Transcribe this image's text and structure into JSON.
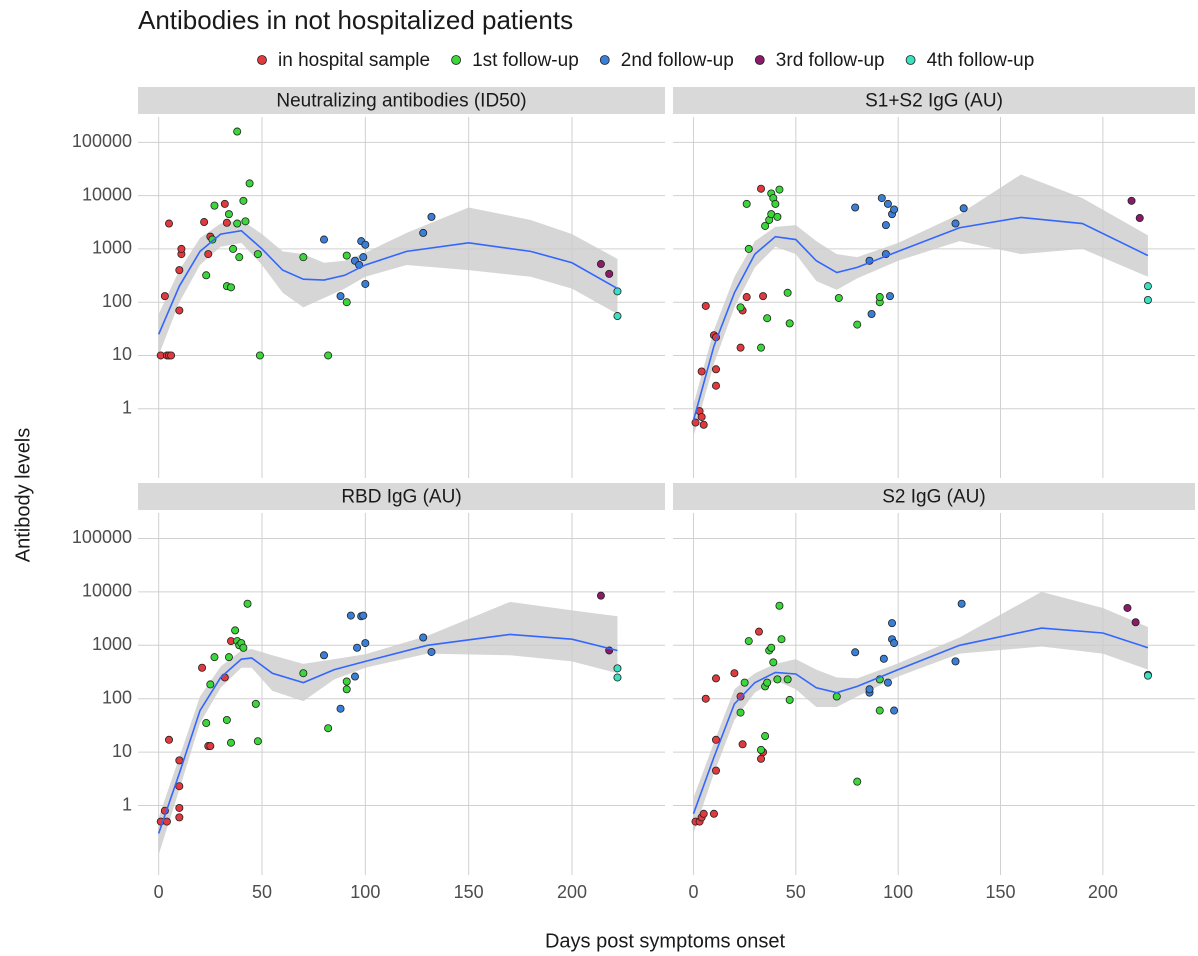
{
  "title": "Antibodies in not hospitalized patients",
  "xlabel": "Days post symptoms onset",
  "ylabel": "Antibody levels",
  "chart_data": [
    {
      "type": "scatter",
      "title": "Neutralizing antibodies (ID50)",
      "xlim": [
        -10,
        245
      ],
      "ylim": [
        0.05,
        300000
      ],
      "xticks": [
        0,
        50,
        100,
        150,
        200
      ],
      "yticks": [
        1,
        10,
        100,
        1000,
        10000,
        100000
      ],
      "log_y": true,
      "grid": true,
      "series": [
        {
          "name": "in hospital sample",
          "color": "#e03a3e",
          "x": [
            1,
            4,
            5,
            6,
            3,
            5,
            10,
            10,
            11,
            11,
            22,
            24,
            25,
            32,
            33
          ],
          "values": [
            10,
            10,
            10,
            10,
            130,
            3000,
            70,
            400,
            800,
            1000,
            3200,
            800,
            1700,
            7000,
            3100
          ]
        },
        {
          "name": "1st follow-up",
          "color": "#3ad63a",
          "x": [
            23,
            27,
            26,
            34,
            33,
            35,
            36,
            38,
            38,
            39,
            41,
            42,
            44,
            48,
            49,
            70,
            82,
            91,
            91
          ],
          "values": [
            320,
            6500,
            1500,
            4500,
            200,
            190,
            1000,
            160000,
            3000,
            700,
            8000,
            3300,
            17000,
            800,
            10,
            700,
            10,
            750,
            100
          ]
        },
        {
          "name": "2nd follow-up",
          "color": "#3a7fd6",
          "x": [
            80,
            88,
            95,
            97,
            98,
            99,
            100,
            100,
            128,
            132
          ],
          "values": [
            1500,
            130,
            600,
            500,
            1400,
            700,
            1200,
            220,
            2000,
            4000
          ]
        },
        {
          "name": "3rd follow-up",
          "color": "#8b1a6b",
          "x": [
            214,
            218
          ],
          "values": [
            520,
            340
          ]
        },
        {
          "name": "4th follow-up",
          "color": "#3ae0c0",
          "x": [
            222,
            222
          ],
          "values": [
            160,
            55
          ]
        }
      ],
      "fit": {
        "color": "#3366ff",
        "band_color": "#cccccc",
        "x": [
          0,
          10,
          20,
          30,
          40,
          50,
          60,
          70,
          80,
          90,
          100,
          120,
          150,
          180,
          200,
          222
        ],
        "values": [
          25,
          200,
          900,
          1900,
          2200,
          1000,
          400,
          270,
          260,
          320,
          500,
          900,
          1300,
          900,
          550,
          180
        ],
        "lower": [
          10,
          100,
          500,
          1100,
          1300,
          500,
          150,
          80,
          120,
          180,
          300,
          500,
          400,
          300,
          180,
          60
        ],
        "upper": [
          60,
          400,
          1600,
          3000,
          3500,
          1900,
          900,
          800,
          550,
          600,
          850,
          2000,
          6000,
          3500,
          1900,
          650
        ]
      }
    },
    {
      "type": "scatter",
      "title": "S1+S2 IgG (AU)",
      "xlim": [
        -10,
        245
      ],
      "ylim": [
        0.05,
        300000
      ],
      "xticks": [
        0,
        50,
        100,
        150,
        200
      ],
      "yticks": [
        1,
        10,
        100,
        1000,
        10000,
        100000
      ],
      "log_y": true,
      "grid": true,
      "series": [
        {
          "name": "in hospital sample",
          "color": "#e03a3e",
          "x": [
            1,
            3,
            4,
            5,
            4,
            6,
            10,
            11,
            11,
            11,
            23,
            24,
            26,
            33,
            34
          ],
          "values": [
            0.55,
            0.9,
            0.7,
            0.5,
            5,
            85,
            24,
            22,
            5.5,
            2.7,
            14,
            70,
            125,
            13500,
            130
          ]
        },
        {
          "name": "1st follow-up",
          "color": "#3ad63a",
          "x": [
            23,
            26,
            27,
            33,
            35,
            36,
            37,
            38,
            38,
            39,
            40,
            41,
            42,
            46,
            47,
            71,
            80,
            91,
            91
          ],
          "values": [
            80,
            7000,
            1000,
            14,
            2700,
            50,
            3500,
            4500,
            11000,
            9000,
            7000,
            4000,
            13000,
            150,
            40,
            120,
            38,
            100,
            125
          ]
        },
        {
          "name": "2nd follow-up",
          "color": "#3a7fd6",
          "x": [
            79,
            86,
            87,
            92,
            94,
            94,
            95,
            96,
            97,
            98,
            128,
            132
          ],
          "values": [
            6000,
            600,
            60,
            9000,
            2800,
            800,
            7000,
            130,
            4500,
            5500,
            3000,
            5800
          ]
        },
        {
          "name": "3rd follow-up",
          "color": "#8b1a6b",
          "x": [
            214,
            218
          ],
          "values": [
            8000,
            3800
          ]
        },
        {
          "name": "4th follow-up",
          "color": "#3ae0c0",
          "x": [
            222,
            222
          ],
          "values": [
            200,
            110
          ]
        }
      ],
      "fit": {
        "color": "#3366ff",
        "band_color": "#cccccc",
        "x": [
          0,
          10,
          20,
          30,
          40,
          50,
          60,
          70,
          80,
          100,
          130,
          160,
          190,
          222
        ],
        "values": [
          0.6,
          15,
          150,
          800,
          1700,
          1500,
          600,
          360,
          450,
          900,
          2500,
          3900,
          3000,
          750
        ],
        "lower": [
          0.3,
          7,
          80,
          450,
          1100,
          800,
          250,
          170,
          280,
          600,
          1400,
          800,
          1000,
          300
        ],
        "upper": [
          1.2,
          30,
          300,
          1400,
          2600,
          2800,
          1400,
          800,
          700,
          1300,
          4500,
          25000,
          9000,
          1800
        ]
      }
    },
    {
      "type": "scatter",
      "title": "RBD IgG (AU)",
      "xlim": [
        -10,
        245
      ],
      "ylim": [
        0.05,
        300000
      ],
      "xticks": [
        0,
        50,
        100,
        150,
        200
      ],
      "yticks": [
        1,
        10,
        100,
        1000,
        10000,
        100000
      ],
      "log_y": true,
      "grid": true,
      "series": [
        {
          "name": "in hospital sample",
          "color": "#e03a3e",
          "x": [
            1,
            3,
            4,
            5,
            10,
            10,
            10,
            10,
            21,
            24,
            25,
            32,
            35
          ],
          "values": [
            0.5,
            0.8,
            0.5,
            17,
            7,
            2.3,
            0.9,
            0.6,
            380,
            13,
            13,
            250,
            1200
          ]
        },
        {
          "name": "1st follow-up",
          "color": "#3ad63a",
          "x": [
            23,
            25,
            27,
            33,
            34,
            35,
            37,
            38,
            39,
            40,
            41,
            43,
            47,
            48,
            70,
            82,
            91,
            91
          ],
          "values": [
            35,
            185,
            600,
            40,
            600,
            15,
            1900,
            1200,
            1000,
            1100,
            900,
            6000,
            80,
            16,
            300,
            28,
            210,
            150
          ]
        },
        {
          "name": "2nd follow-up",
          "color": "#3a7fd6",
          "x": [
            80,
            88,
            93,
            95,
            96,
            98,
            99,
            100,
            128,
            132
          ],
          "values": [
            650,
            65,
            3600,
            260,
            900,
            3500,
            3600,
            1100,
            1400,
            750
          ]
        },
        {
          "name": "3rd follow-up",
          "color": "#8b1a6b",
          "x": [
            214,
            218
          ],
          "values": [
            8500,
            800
          ]
        },
        {
          "name": "4th follow-up",
          "color": "#3ae0c0",
          "x": [
            222,
            222
          ],
          "values": [
            370,
            250
          ]
        }
      ],
      "fit": {
        "color": "#3366ff",
        "band_color": "#cccccc",
        "x": [
          0,
          10,
          20,
          30,
          40,
          45,
          55,
          70,
          85,
          100,
          130,
          170,
          200,
          222
        ],
        "values": [
          0.3,
          4,
          60,
          250,
          550,
          580,
          300,
          200,
          350,
          500,
          1000,
          1600,
          1300,
          800
        ],
        "lower": [
          0.12,
          2,
          35,
          160,
          380,
          380,
          140,
          90,
          230,
          380,
          700,
          650,
          500,
          300
        ],
        "upper": [
          0.6,
          8,
          110,
          400,
          800,
          850,
          650,
          450,
          550,
          680,
          1500,
          6500,
          4500,
          3500
        ]
      }
    },
    {
      "type": "scatter",
      "title": "S2 IgG (AU)",
      "xlim": [
        -10,
        245
      ],
      "ylim": [
        0.05,
        300000
      ],
      "xticks": [
        0,
        50,
        100,
        150,
        200
      ],
      "yticks": [
        1,
        10,
        100,
        1000,
        10000,
        100000
      ],
      "log_y": true,
      "grid": true,
      "series": [
        {
          "name": "in hospital sample",
          "color": "#e03a3e",
          "x": [
            1,
            3,
            4,
            5,
            6,
            10,
            11,
            11,
            11,
            20,
            23,
            24,
            32,
            33,
            34
          ],
          "values": [
            0.5,
            0.5,
            0.6,
            0.7,
            100,
            0.7,
            4.5,
            17,
            240,
            300,
            110,
            14,
            1800,
            7.5,
            10
          ]
        },
        {
          "name": "1st follow-up",
          "color": "#3ad63a",
          "x": [
            23,
            25,
            27,
            33,
            35,
            35,
            36,
            37,
            38,
            39,
            41,
            42,
            43,
            46,
            47,
            70,
            80,
            91,
            91
          ],
          "values": [
            55,
            200,
            1200,
            11,
            20,
            170,
            200,
            800,
            900,
            480,
            230,
            5500,
            1300,
            230,
            95,
            110,
            2.8,
            60,
            230
          ]
        },
        {
          "name": "2nd follow-up",
          "color": "#3a7fd6",
          "x": [
            79,
            86,
            86,
            93,
            95,
            97,
            97,
            98,
            98,
            128,
            131
          ],
          "values": [
            740,
            130,
            150,
            560,
            200,
            2600,
            1300,
            1100,
            60,
            500,
            6000
          ]
        },
        {
          "name": "3rd follow-up",
          "color": "#8b1a6b",
          "x": [
            212,
            216
          ],
          "values": [
            5000,
            2700
          ]
        },
        {
          "name": "4th follow-up",
          "color": "#3ae0c0",
          "x": [
            222,
            222
          ],
          "values": [
            280,
            270
          ]
        }
      ],
      "fit": {
        "color": "#3366ff",
        "band_color": "#cccccc",
        "x": [
          0,
          10,
          20,
          30,
          40,
          50,
          60,
          70,
          80,
          100,
          130,
          170,
          200,
          222
        ],
        "values": [
          0.7,
          8,
          80,
          200,
          310,
          290,
          160,
          130,
          170,
          350,
          1000,
          2100,
          1700,
          900
        ],
        "lower": [
          0.3,
          4,
          40,
          130,
          220,
          150,
          70,
          70,
          110,
          260,
          700,
          950,
          700,
          350
        ],
        "upper": [
          1.4,
          15,
          150,
          300,
          450,
          550,
          350,
          250,
          240,
          460,
          1400,
          10000,
          5000,
          2200
        ]
      }
    }
  ]
}
